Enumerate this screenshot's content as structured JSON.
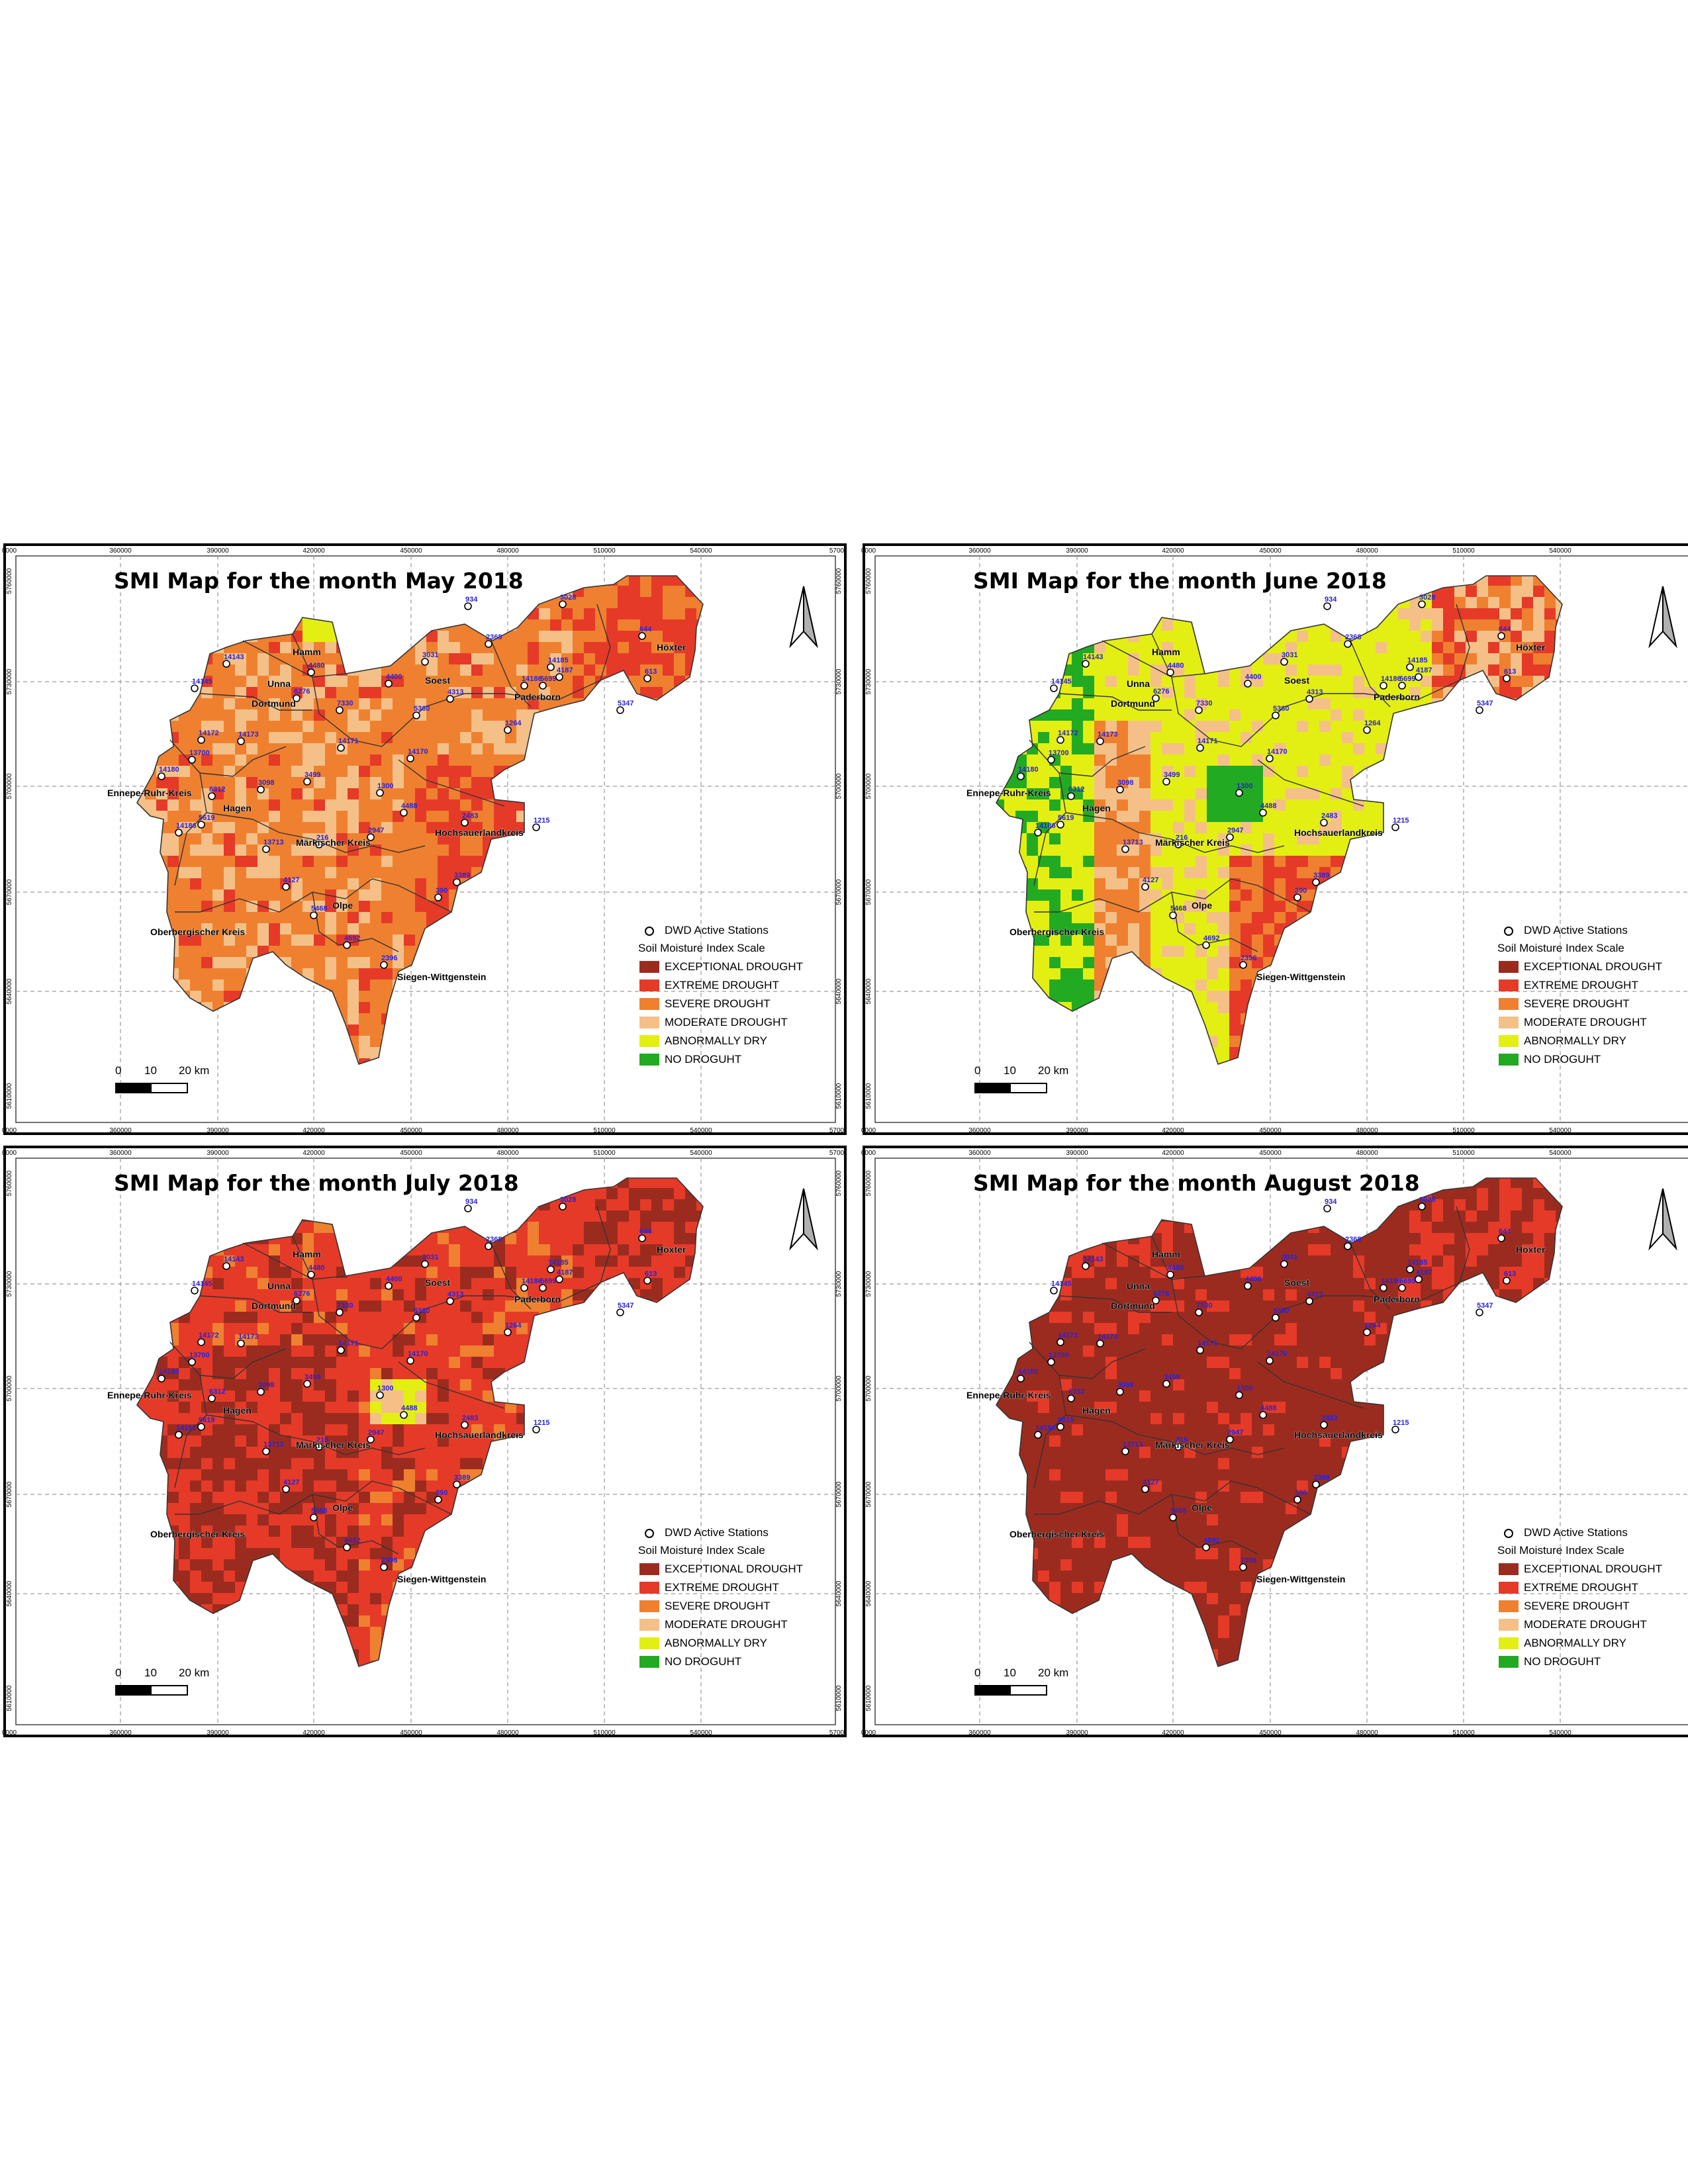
{
  "colors": {
    "exceptional": "#9c2b1f",
    "extreme": "#e53a28",
    "severe": "#ef8030",
    "moderate": "#f4c088",
    "abnormally_dry": "#e3ef12",
    "no_drought": "#22aa22",
    "background": "#ffffff",
    "station_label": "#2a22d8"
  },
  "grid": {
    "x_ticks": [
      "360000",
      "390000",
      "420000",
      "450000",
      "480000",
      "510000",
      "540000"
    ],
    "x_edge_left": "0000",
    "x_edge_right": "5700",
    "y_ticks": [
      "5760000",
      "5730000",
      "5700000",
      "5670000",
      "5640000",
      "5610000"
    ]
  },
  "legend": {
    "stations_label": "DWD Active Stations",
    "scale_title": "Soil Moisture Index Scale",
    "items": [
      {
        "label": "EXCEPTIONAL DROUGHT",
        "color": "#9c2b1f"
      },
      {
        "label": "EXTREME DROUGHT",
        "color": "#e53a28"
      },
      {
        "label": "SEVERE DROUGHT",
        "color": "#ef8030"
      },
      {
        "label": "MODERATE DROUGHT",
        "color": "#f4c088"
      },
      {
        "label": "ABNORMALLY DRY",
        "color": "#e3ef12"
      },
      {
        "label": "NO DROGUHT",
        "color": "#22aa22"
      }
    ]
  },
  "scale_bar": {
    "labels": [
      "0",
      "10",
      "20 km"
    ]
  },
  "districts": [
    "Hamm",
    "Unna",
    "Dortmund",
    "Soest",
    "Paderborn",
    "Höxter",
    "Ennepe-Ruhr-Kreis",
    "Hagen",
    "Märkischer Kreis",
    "Hochsauerlandkreis",
    "Olpe",
    "Oberbergischer Kreis",
    "Siegen-Wittgenstein"
  ],
  "stations": [
    "934",
    "3028",
    "644",
    "2368",
    "14185",
    "4187",
    "5699",
    "14186",
    "613",
    "5347",
    "3031",
    "14143",
    "4480",
    "4400",
    "14145",
    "6276",
    "7330",
    "4313",
    "5360",
    "1264",
    "14172",
    "14173",
    "13700",
    "14180",
    "14171",
    "14170",
    "3499",
    "3098",
    "6312",
    "1300",
    "4488",
    "2483",
    "5619",
    "14186",
    "13713",
    "216",
    "2947",
    "1215",
    "4127",
    "3389",
    "390",
    "5468",
    "4692",
    "2396"
  ],
  "maps": [
    {
      "title": "SMI Map for the month May 2018",
      "dominant": "severe"
    },
    {
      "title": "SMI Map for the month June 2018",
      "dominant": "abnormally_dry"
    },
    {
      "title": "SMI Map for the month July 2018",
      "dominant": "extreme"
    },
    {
      "title": "SMI Map for the month August 2018",
      "dominant": "exceptional"
    }
  ]
}
